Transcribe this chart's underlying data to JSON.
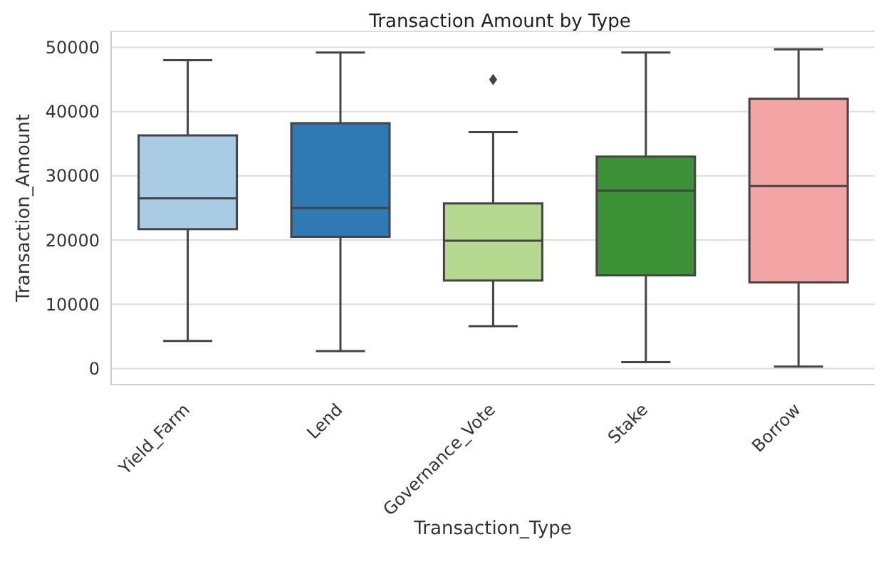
{
  "chart_data": {
    "type": "box",
    "title": "Transaction Amount by Type",
    "xlabel": "Transaction_Type",
    "ylabel": "Transaction_Amount",
    "categories": [
      "Yield_Farm",
      "Lend",
      "Governance_Vote",
      "Stake",
      "Borrow"
    ],
    "colors": [
      "#a9cbe3",
      "#2f79b5",
      "#b5d98f",
      "#3d9238",
      "#f3a4a4"
    ],
    "boxes": [
      {
        "low": 4300,
        "q1": 21700,
        "median": 26500,
        "q3": 36300,
        "high": 48000
      },
      {
        "low": 2700,
        "q1": 20500,
        "median": 25000,
        "q3": 38200,
        "high": 49200
      },
      {
        "low": 6600,
        "q1": 13700,
        "median": 19900,
        "q3": 25700,
        "high": 36800,
        "outliers": [
          45000
        ]
      },
      {
        "low": 1000,
        "q1": 14500,
        "median": 27700,
        "q3": 33000,
        "high": 49200
      },
      {
        "low": 300,
        "q1": 13400,
        "median": 28400,
        "q3": 42000,
        "high": 49700
      }
    ],
    "ylim": [
      -2500,
      52500
    ],
    "yticks": [
      0,
      10000,
      20000,
      30000,
      40000,
      50000
    ],
    "grid": "y",
    "marker": "diamond"
  }
}
